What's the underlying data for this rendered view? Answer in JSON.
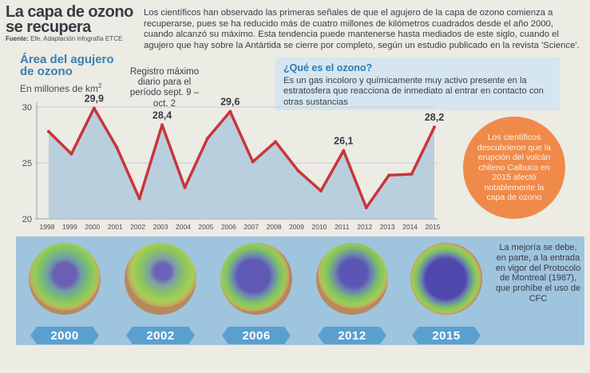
{
  "header": {
    "title": "La capa de ozono se recupera",
    "source_label": "Fuente:",
    "source_text": "Efe. Adaptación infografía ETCE",
    "intro": "Los científicos han observado las primeras señales de que el agujero de la capa de ozono comienza a recuperarse, pues se ha reducido más de cuatro millones de kilómetros cuadrados desde el año 2000, cuando alcanzó su máximo. Esta tendencia puede mantenerse hasta mediados de este siglo, cuando el agujero que hay sobre la Antártida se cierre por completo, según un estudio publicado en la revista 'Science'."
  },
  "area": {
    "title": "Área del agujero de ozono",
    "unit": "En millones de km",
    "unit_sup": "2"
  },
  "registro_note": "Registro máximo diario para el período sept. 9 – oct. 2",
  "what_is": {
    "title": "¿Qué es el ozono?",
    "text": "Es un gas incoloro y químicamente muy activo presente en la estratosfera que reacciona de inmediato al entrar en contacto con otras sustancias"
  },
  "orange_note": "Los científicos descubrieron que la erupción del volcán chileno Calbuco en 2015 afectó notablemente la capa de ozono",
  "mejoria_note": "La mejoría se debe, en parte, a la entrada en vigor del Protocolo de Montreal (1987), que prohíbe el uso de CFC",
  "globes": [
    {
      "year": "2000"
    },
    {
      "year": "2002"
    },
    {
      "year": "2006"
    },
    {
      "year": "2012"
    },
    {
      "year": "2015"
    }
  ],
  "colors": {
    "line": "#c8363a",
    "area_fill": "#a9c6dc",
    "accent_blue": "#3a7fb0",
    "orange": "#f08a4a",
    "band": "#9fc4de",
    "year_tag": "#5aa0cf"
  },
  "chart_data": {
    "type": "line",
    "title": "Área del agujero de ozono",
    "ylabel": "En millones de km2",
    "ylim": [
      20,
      31
    ],
    "yticks": [
      20,
      25,
      30
    ],
    "x": [
      "1998",
      "1999",
      "2000",
      "2001",
      "2002",
      "2003",
      "2004",
      "2005",
      "2006",
      "2007",
      "2008",
      "2009",
      "2010",
      "2011",
      "2012",
      "2013",
      "2014",
      "2015"
    ],
    "series": [
      {
        "values": [
          27.8,
          25.8,
          29.9,
          26.4,
          21.8,
          28.4,
          22.8,
          27.2,
          29.6,
          25.1,
          26.9,
          24.3,
          22.5,
          26.1,
          21.0,
          23.9,
          24.0,
          28.2
        ]
      }
    ],
    "data_labels": [
      {
        "x": "2000",
        "label": "29,9"
      },
      {
        "x": "2003",
        "label": "28,4"
      },
      {
        "x": "2006",
        "label": "29,6"
      },
      {
        "x": "2011",
        "label": "26,1"
      },
      {
        "x": "2015",
        "label": "28,2"
      }
    ]
  }
}
